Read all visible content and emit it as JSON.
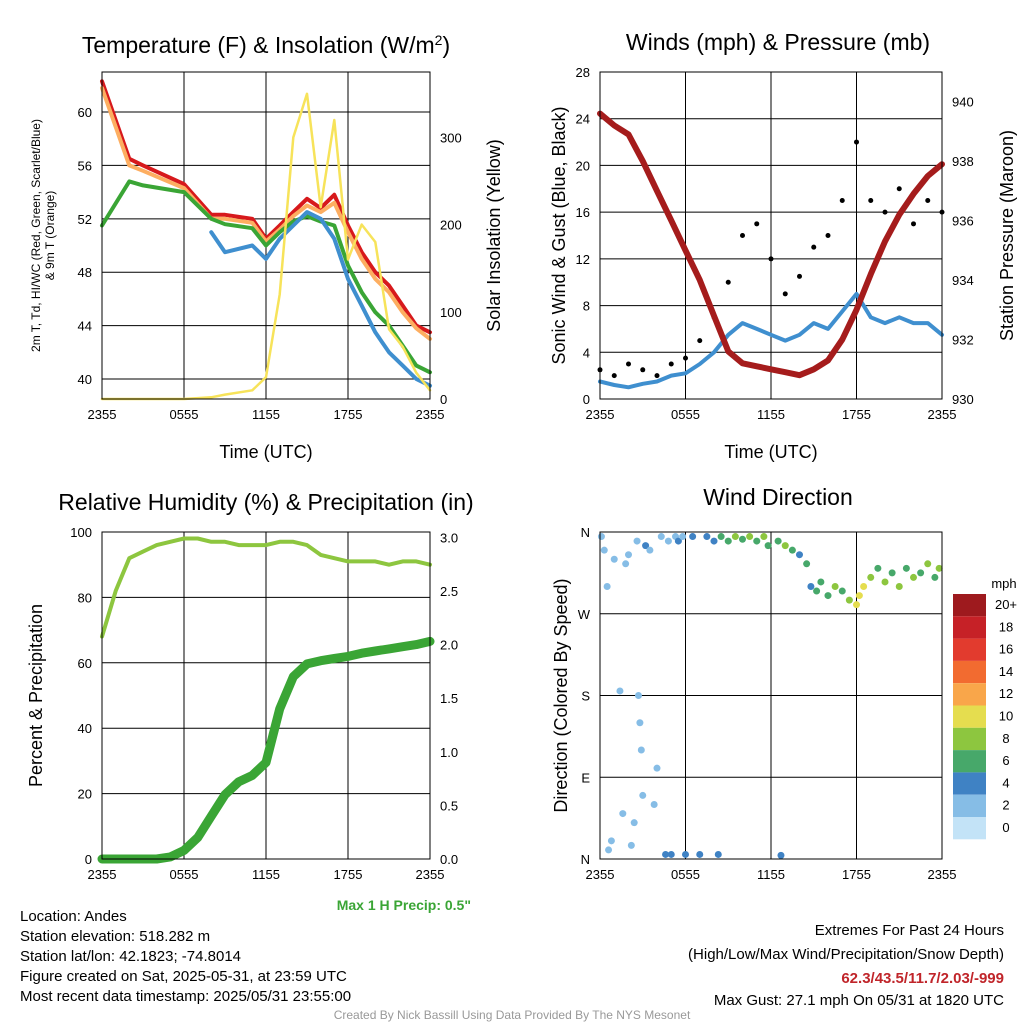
{
  "chart_data": [
    {
      "type": "line",
      "title": "Temperature (F) & Insolation (W/m²)",
      "xlabel": "Time (UTC)",
      "ylabel": "2m T, Td, HI/WC (Red, Green, Scarlet/Blue) & 9m T (Orange)",
      "ylabel_right": "Solar Insolation (Yellow)",
      "x_ticks": [
        "2355",
        "0555",
        "1155",
        "1755",
        "2355"
      ],
      "y_ticks": [
        40,
        44,
        48,
        52,
        56,
        60
      ],
      "y_ticks_right": [
        0,
        100,
        200,
        300
      ],
      "ylim": [
        38.5,
        63
      ],
      "ylim_right": [
        0,
        375
      ],
      "grid": true,
      "x_hours": [
        0,
        2,
        3,
        6,
        8,
        9,
        11,
        12,
        13,
        14,
        15,
        16,
        17,
        18,
        19,
        20,
        21,
        22,
        23,
        24
      ],
      "series": [
        {
          "name": "2m T",
          "color": "#d7191c",
          "axis": "left",
          "values": [
            62.3,
            56.5,
            56.0,
            54.6,
            52.3,
            52.3,
            52.0,
            50.5,
            51.5,
            52.5,
            53.5,
            52.8,
            53.8,
            51.5,
            49.5,
            48.0,
            47.0,
            45.5,
            44.0,
            43.5
          ]
        },
        {
          "name": "9m T",
          "color": "#fdae61",
          "axis": "left",
          "values": [
            61.8,
            56.0,
            55.6,
            54.3,
            52.0,
            52.0,
            51.7,
            50.3,
            51.2,
            52.2,
            53.0,
            52.5,
            53.2,
            51.0,
            49.0,
            47.5,
            46.5,
            45.0,
            43.8,
            43.0
          ]
        },
        {
          "name": "Td",
          "color": "#3aa535",
          "axis": "left",
          "values": [
            51.5,
            54.8,
            54.5,
            54.0,
            52.0,
            51.6,
            51.3,
            50.0,
            51.0,
            51.8,
            52.2,
            51.8,
            51.5,
            48.5,
            46.5,
            45.0,
            44.0,
            42.5,
            41.0,
            40.5
          ]
        },
        {
          "name": "HI/WC",
          "color": "#3f8fcf",
          "axis": "left",
          "values": [
            null,
            null,
            null,
            null,
            51.0,
            49.5,
            50.0,
            49.0,
            50.5,
            51.5,
            52.5,
            52.0,
            50.5,
            47.5,
            45.5,
            43.5,
            42.0,
            41.0,
            40.0,
            39.5
          ]
        },
        {
          "name": "Solar Insolation",
          "color": "#f7e35a",
          "axis": "right",
          "values": [
            0,
            0,
            0,
            0,
            2,
            5,
            10,
            25,
            120,
            300,
            350,
            220,
            320,
            160,
            200,
            180,
            80,
            60,
            30,
            10
          ]
        }
      ]
    },
    {
      "type": "line",
      "title": "Winds (mph) & Pressure (mb)",
      "xlabel": "Time (UTC)",
      "ylabel": "Sonic Wind & Gust (Blue, Black)",
      "ylabel_right": "Station Pressure (Maroon)",
      "x_ticks": [
        "2355",
        "0555",
        "1155",
        "1755",
        "2355"
      ],
      "y_ticks": [
        0,
        4,
        8,
        12,
        16,
        20,
        24,
        28
      ],
      "y_ticks_right": [
        930,
        932,
        934,
        936,
        938,
        940
      ],
      "ylim": [
        0,
        28
      ],
      "ylim_right": [
        930,
        941
      ],
      "grid": true,
      "x_hours": [
        0,
        1,
        2,
        3,
        4,
        5,
        6,
        7,
        8,
        9,
        10,
        11,
        12,
        13,
        14,
        15,
        16,
        17,
        18,
        19,
        20,
        21,
        22,
        23,
        24
      ],
      "series": [
        {
          "name": "Sonic Wind",
          "color": "#3f8fcf",
          "axis": "left",
          "values": [
            1.5,
            1.2,
            1.0,
            1.3,
            1.5,
            2.0,
            2.2,
            3.0,
            4.0,
            5.5,
            6.5,
            6.0,
            5.5,
            5.0,
            5.5,
            6.5,
            6.0,
            7.5,
            9.0,
            7.0,
            6.5,
            7.0,
            6.5,
            6.5,
            5.5
          ]
        },
        {
          "name": "Gust",
          "color": "#000000",
          "axis": "left",
          "values": [
            2.5,
            2.0,
            3.0,
            2.5,
            2.0,
            3.0,
            3.5,
            5.0,
            7.0,
            10.0,
            14.0,
            15.0,
            12.0,
            9.0,
            10.5,
            13.0,
            14.0,
            17.0,
            22.0,
            17.0,
            16.0,
            18.0,
            15.0,
            17.0,
            16.0
          ]
        },
        {
          "name": "Station Pressure",
          "color": "#a51c1c",
          "axis": "right",
          "values": [
            939.6,
            939.2,
            938.9,
            938.0,
            937.0,
            936.0,
            935.0,
            934.0,
            932.8,
            931.6,
            931.2,
            931.1,
            931.0,
            930.9,
            930.8,
            931.0,
            931.3,
            932.0,
            933.0,
            934.2,
            935.3,
            936.2,
            936.9,
            937.5,
            937.9
          ]
        }
      ]
    },
    {
      "type": "line",
      "title": "Relative Humidity (%) & Precipitation (in)",
      "xlabel": "",
      "ylabel": "Percent & Precipitation",
      "x_ticks": [
        "2355",
        "0555",
        "1155",
        "1755",
        "2355"
      ],
      "y_ticks": [
        0,
        20,
        40,
        60,
        80,
        100
      ],
      "y_ticks_right": [
        "0.0",
        "0.5",
        "1.0",
        "1.5",
        "2.0",
        "2.5",
        "3.0"
      ],
      "ylim": [
        0,
        100
      ],
      "ylim_right": [
        0,
        3.05
      ],
      "grid": true,
      "x_hours": [
        0,
        1,
        2,
        3,
        4,
        5,
        6,
        7,
        8,
        9,
        10,
        11,
        12,
        13,
        14,
        15,
        16,
        17,
        18,
        19,
        20,
        21,
        22,
        23,
        24
      ],
      "series": [
        {
          "name": "Relative Humidity",
          "color": "#8dc63f",
          "axis": "left",
          "values": [
            68,
            82,
            92,
            94,
            96,
            97,
            98,
            98,
            97,
            97,
            96,
            96,
            96,
            97,
            97,
            96,
            93,
            92,
            91,
            91,
            91,
            90,
            91,
            91,
            90
          ]
        },
        {
          "name": "Precipitation",
          "color": "#3aa535",
          "axis": "right",
          "values": [
            0,
            0,
            0,
            0,
            0,
            0.02,
            0.08,
            0.2,
            0.4,
            0.6,
            0.72,
            0.78,
            0.9,
            1.4,
            1.7,
            1.82,
            1.85,
            1.87,
            1.89,
            1.92,
            1.94,
            1.96,
            1.98,
            2.0,
            2.03
          ]
        }
      ]
    },
    {
      "type": "scatter",
      "title": "Wind Direction",
      "xlabel": "",
      "ylabel": "Direction (Colored By Speed)",
      "x_ticks": [
        "2355",
        "0555",
        "1155",
        "1755",
        "2355"
      ],
      "y_ticks": [
        "N",
        "E",
        "S",
        "W",
        "N"
      ],
      "ylim": [
        0,
        360
      ],
      "grid": true,
      "colorbar": {
        "title": "mph",
        "labels": [
          "20+",
          "18",
          "16",
          "14",
          "12",
          "10",
          "8",
          "6",
          "4",
          "2",
          "0"
        ],
        "colors": [
          "#9e1a1e",
          "#c62127",
          "#e23b2e",
          "#f26b30",
          "#f9a64a",
          "#e5dd4f",
          "#8dc63f",
          "#47a86a",
          "#3f82c4",
          "#86bde6",
          "#c3e3f7"
        ]
      },
      "points": [
        {
          "t": 0.1,
          "dir": 355,
          "spd": 1
        },
        {
          "t": 0.3,
          "dir": 340,
          "spd": 1
        },
        {
          "t": 0.5,
          "dir": 300,
          "spd": 1
        },
        {
          "t": 0.6,
          "dir": 10,
          "spd": 1
        },
        {
          "t": 0.8,
          "dir": 20,
          "spd": 1
        },
        {
          "t": 1.0,
          "dir": 330,
          "spd": 2
        },
        {
          "t": 1.4,
          "dir": 185,
          "spd": 1
        },
        {
          "t": 1.6,
          "dir": 50,
          "spd": 1
        },
        {
          "t": 1.8,
          "dir": 325,
          "spd": 2
        },
        {
          "t": 2.0,
          "dir": 335,
          "spd": 2
        },
        {
          "t": 2.2,
          "dir": 15,
          "spd": 1
        },
        {
          "t": 2.4,
          "dir": 40,
          "spd": 1
        },
        {
          "t": 2.6,
          "dir": 350,
          "spd": 2
        },
        {
          "t": 2.7,
          "dir": 180,
          "spd": 1
        },
        {
          "t": 2.8,
          "dir": 150,
          "spd": 1
        },
        {
          "t": 2.9,
          "dir": 120,
          "spd": 1
        },
        {
          "t": 3.0,
          "dir": 70,
          "spd": 1
        },
        {
          "t": 3.2,
          "dir": 345,
          "spd": 3
        },
        {
          "t": 3.5,
          "dir": 340,
          "spd": 2
        },
        {
          "t": 3.8,
          "dir": 60,
          "spd": 2
        },
        {
          "t": 4.0,
          "dir": 100,
          "spd": 1
        },
        {
          "t": 4.3,
          "dir": 355,
          "spd": 2
        },
        {
          "t": 4.6,
          "dir": 5,
          "spd": 3
        },
        {
          "t": 4.8,
          "dir": 350,
          "spd": 2
        },
        {
          "t": 5.0,
          "dir": 5,
          "spd": 3
        },
        {
          "t": 5.3,
          "dir": 355,
          "spd": 2
        },
        {
          "t": 5.5,
          "dir": 350,
          "spd": 3
        },
        {
          "t": 5.8,
          "dir": 355,
          "spd": 2
        },
        {
          "t": 6.0,
          "dir": 5,
          "spd": 4
        },
        {
          "t": 6.5,
          "dir": 355,
          "spd": 3
        },
        {
          "t": 7.0,
          "dir": 5,
          "spd": 4
        },
        {
          "t": 7.5,
          "dir": 355,
          "spd": 3
        },
        {
          "t": 8.0,
          "dir": 350,
          "spd": 4
        },
        {
          "t": 8.3,
          "dir": 5,
          "spd": 4
        },
        {
          "t": 8.5,
          "dir": 355,
          "spd": 5
        },
        {
          "t": 9.0,
          "dir": 350,
          "spd": 6
        },
        {
          "t": 9.5,
          "dir": 355,
          "spd": 7
        },
        {
          "t": 10.0,
          "dir": 352,
          "spd": 6
        },
        {
          "t": 10.5,
          "dir": 355,
          "spd": 7
        },
        {
          "t": 11.0,
          "dir": 350,
          "spd": 6
        },
        {
          "t": 11.5,
          "dir": 355,
          "spd": 7
        },
        {
          "t": 11.8,
          "dir": 345,
          "spd": 6
        },
        {
          "t": 12.5,
          "dir": 350,
          "spd": 6
        },
        {
          "t": 12.7,
          "dir": 4,
          "spd": 4
        },
        {
          "t": 13.0,
          "dir": 345,
          "spd": 7
        },
        {
          "t": 13.5,
          "dir": 340,
          "spd": 5
        },
        {
          "t": 14.0,
          "dir": 335,
          "spd": 4
        },
        {
          "t": 14.5,
          "dir": 325,
          "spd": 6
        },
        {
          "t": 14.8,
          "dir": 300,
          "spd": 4
        },
        {
          "t": 15.2,
          "dir": 295,
          "spd": 5
        },
        {
          "t": 15.5,
          "dir": 305,
          "spd": 6
        },
        {
          "t": 16.0,
          "dir": 290,
          "spd": 5
        },
        {
          "t": 16.5,
          "dir": 300,
          "spd": 7
        },
        {
          "t": 17.0,
          "dir": 295,
          "spd": 6
        },
        {
          "t": 17.5,
          "dir": 285,
          "spd": 8
        },
        {
          "t": 18.0,
          "dir": 280,
          "spd": 10
        },
        {
          "t": 18.2,
          "dir": 290,
          "spd": 9
        },
        {
          "t": 18.5,
          "dir": 300,
          "spd": 10
        },
        {
          "t": 19.0,
          "dir": 310,
          "spd": 7
        },
        {
          "t": 19.5,
          "dir": 320,
          "spd": 6
        },
        {
          "t": 20.0,
          "dir": 305,
          "spd": 8
        },
        {
          "t": 20.5,
          "dir": 315,
          "spd": 6
        },
        {
          "t": 21.0,
          "dir": 300,
          "spd": 7
        },
        {
          "t": 21.5,
          "dir": 320,
          "spd": 6
        },
        {
          "t": 22.0,
          "dir": 310,
          "spd": 8
        },
        {
          "t": 22.5,
          "dir": 315,
          "spd": 6
        },
        {
          "t": 23.0,
          "dir": 325,
          "spd": 7
        },
        {
          "t": 23.5,
          "dir": 310,
          "spd": 6
        },
        {
          "t": 23.8,
          "dir": 320,
          "spd": 7
        }
      ]
    }
  ],
  "station_info": {
    "location": "Location: Andes",
    "elevation": "Station elevation: 518.282 m",
    "latlon": "Station lat/lon: 42.1823; -74.8014",
    "created": "Figure created on Sat, 2025-05-31, at 23:59 UTC",
    "recent": "Most recent data timestamp: 2025/05/31 23:55:00"
  },
  "extremes": {
    "heading": "Extremes For Past 24 Hours",
    "subheading": "(High/Low/Max Wind/Precipitation/Snow Depth)",
    "values": "62.3/43.5/11.7/2.03/-999",
    "max_gust": "Max Gust: 27.1 mph On 05/31 at 1820 UTC"
  },
  "max_precip": "Max 1 H Precip: 0.5\"",
  "credit": "Created By Nick Bassill Using Data Provided By The NYS Mesonet"
}
